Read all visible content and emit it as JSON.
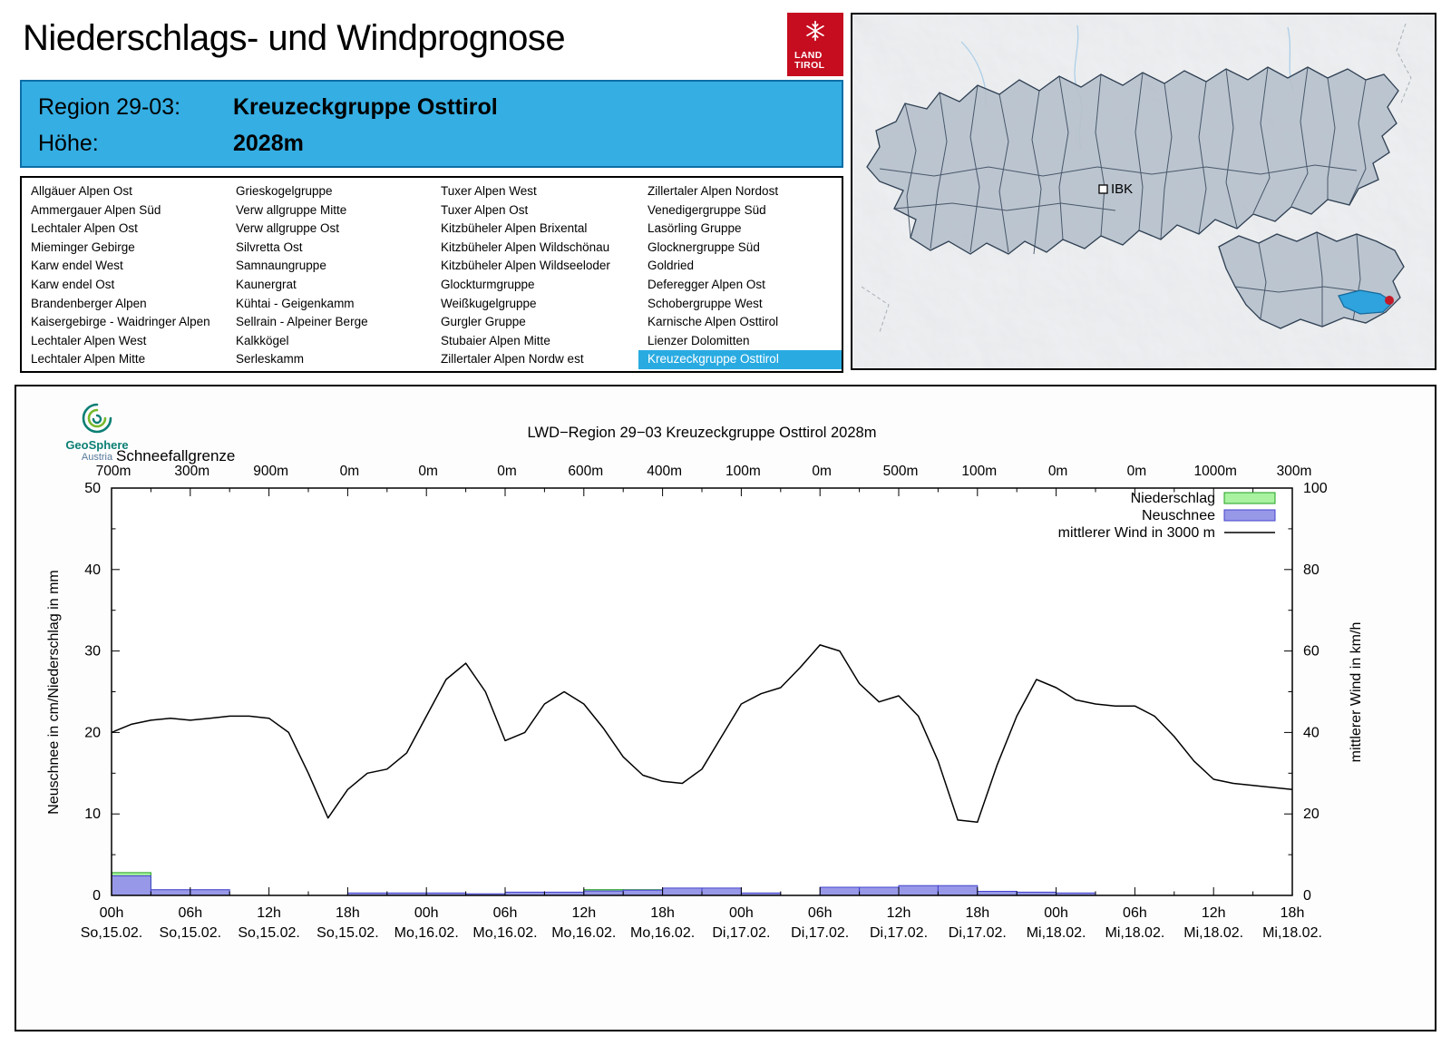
{
  "page": {
    "title": "Niederschlags- und Windprognose"
  },
  "brand": {
    "line1": "LAND",
    "line2": "TIROL",
    "color": "#c50d1f"
  },
  "region_header": {
    "region_label": "Region 29-03:",
    "region_value": "Kreuzeckgruppe Osttirol",
    "altitude_label": "Höhe:",
    "altitude_value": "2028m",
    "bg_color": "#35aee3"
  },
  "region_list": {
    "selected": "Kreuzeckgruppe Osttirol",
    "highlight_color": "#29abe2",
    "columns": [
      [
        "Allgäuer Alpen Ost",
        "Ammergauer Alpen Süd",
        "Lechtaler Alpen Ost",
        "Mieminger Gebirge",
        "Karw endel West",
        "Karw endel Ost",
        "Brandenberger Alpen",
        "Kaisergebirge - Waidringer Alpen",
        "Lechtaler Alpen West",
        "Lechtaler Alpen Mitte"
      ],
      [
        "Grieskogelgruppe",
        "Verw allgruppe Mitte",
        "Verw allgruppe Ost",
        "Silvretta Ost",
        "Samnaungruppe",
        "Kaunergrat",
        "Kühtai - Geigenkamm",
        "Sellrain - Alpeiner Berge",
        "Kalkkögel",
        "Serleskamm"
      ],
      [
        "Tuxer Alpen West",
        "Tuxer Alpen Ost",
        "Kitzbüheler Alpen Brixental",
        "Kitzbüheler Alpen Wildschönau",
        "Kitzbüheler Alpen Wildseeloder",
        "Glockturmgruppe",
        "Weißkugelgruppe",
        "Gurgler Gruppe",
        "Stubaier Alpen Mitte",
        "Zillertaler Alpen Nordw est"
      ],
      [
        "Zillertaler Alpen Nordost",
        "Venedigergruppe Süd",
        "Lasörling Gruppe",
        "Glocknergruppe Süd",
        "Goldried",
        "Deferegger Alpen Ost",
        "Schobergruppe West",
        "Karnische Alpen Osttirol",
        "Lienzer Dolomitten",
        "Kreuzeckgruppe Osttirol"
      ]
    ]
  },
  "map": {
    "city_label": "IBK",
    "selected_fill": "#2ea3de",
    "dot_color": "#c41a28"
  },
  "source_logo": {
    "name": "GeoSphere",
    "sub": "Austria"
  },
  "chart_data": {
    "type": "mixed-bar-line",
    "title": "LWD−Region 29−03 Kreuzeckgruppe Osttirol 2028m",
    "snowline_label": "Schneefallgrenze",
    "snowline_values": [
      "700m",
      "300m",
      "900m",
      "0m",
      "0m",
      "0m",
      "600m",
      "400m",
      "100m",
      "0m",
      "500m",
      "100m",
      "0m",
      "0m",
      "1000m",
      "300m"
    ],
    "ylabel_left": "Neuschnee in cm/Niederschlag in mm",
    "ylabel_right": "mittlerer Wind in km/h",
    "ylim_left": [
      0,
      50
    ],
    "ylim_right": [
      0,
      100
    ],
    "x_hours_total": 90,
    "x_major_step_h": 6,
    "x_ticks": [
      {
        "time": "00h",
        "date": "So,15.02."
      },
      {
        "time": "06h",
        "date": "So,15.02."
      },
      {
        "time": "12h",
        "date": "So,15.02."
      },
      {
        "time": "18h",
        "date": "So,15.02."
      },
      {
        "time": "00h",
        "date": "Mo,16.02."
      },
      {
        "time": "06h",
        "date": "Mo,16.02."
      },
      {
        "time": "12h",
        "date": "Mo,16.02."
      },
      {
        "time": "18h",
        "date": "Mo,16.02."
      },
      {
        "time": "00h",
        "date": "Di,17.02."
      },
      {
        "time": "06h",
        "date": "Di,17.02."
      },
      {
        "time": "12h",
        "date": "Di,17.02."
      },
      {
        "time": "18h",
        "date": "Di,17.02."
      },
      {
        "time": "00h",
        "date": "Mi,18.02."
      },
      {
        "time": "06h",
        "date": "Mi,18.02."
      },
      {
        "time": "12h",
        "date": "Mi,18.02."
      },
      {
        "time": "18h",
        "date": "Mi,18.02."
      }
    ],
    "legend": [
      {
        "label": "Niederschlag",
        "swatch": "box",
        "fill": "#a8f2a0",
        "border": "#20a020"
      },
      {
        "label": "Neuschnee",
        "swatch": "box",
        "fill": "#9898e8",
        "border": "#4343cc"
      },
      {
        "label": "mittlerer Wind in 3000 m",
        "swatch": "line",
        "stroke": "#000000"
      }
    ],
    "wind_series": {
      "name": "mittlerer Wind in 3000 m",
      "unit": "km/h",
      "interval_h": 1.5,
      "values": [
        40,
        42,
        43,
        43.5,
        43,
        43.5,
        44,
        44,
        43.5,
        40,
        30,
        19,
        26,
        30,
        31,
        35,
        44,
        53,
        57,
        50,
        38,
        40,
        47,
        50,
        47,
        41,
        34,
        29.5,
        28,
        27.5,
        31,
        39,
        47,
        49.5,
        51,
        56,
        61.5,
        60,
        52,
        47.5,
        49,
        44,
        33,
        18.5,
        18,
        32,
        44,
        53,
        51,
        48,
        47,
        46.5,
        46.5,
        44,
        39,
        33,
        28.5,
        27.5,
        27,
        26.5,
        26
      ]
    },
    "precip_bars": {
      "name": "Niederschlag",
      "unit": "mm",
      "interval_h": 3,
      "values": [
        2.8,
        0,
        0,
        0,
        0,
        0,
        0,
        0,
        0,
        0,
        0.2,
        0.3,
        0.7,
        0.7,
        0,
        0,
        0,
        0,
        0,
        0,
        0,
        0,
        0,
        0,
        0,
        0,
        0,
        0,
        0,
        0
      ]
    },
    "snow_bars": {
      "name": "Neuschnee",
      "unit": "cm",
      "interval_h": 3,
      "values": [
        2.4,
        0.7,
        0.7,
        0,
        0,
        0,
        0.3,
        0.3,
        0.3,
        0.2,
        0.4,
        0.4,
        0.55,
        0.65,
        0.9,
        0.9,
        0.3,
        0,
        1.0,
        1.0,
        1.2,
        1.2,
        0.5,
        0.4,
        0.3,
        0,
        0,
        0,
        0,
        0
      ]
    }
  }
}
